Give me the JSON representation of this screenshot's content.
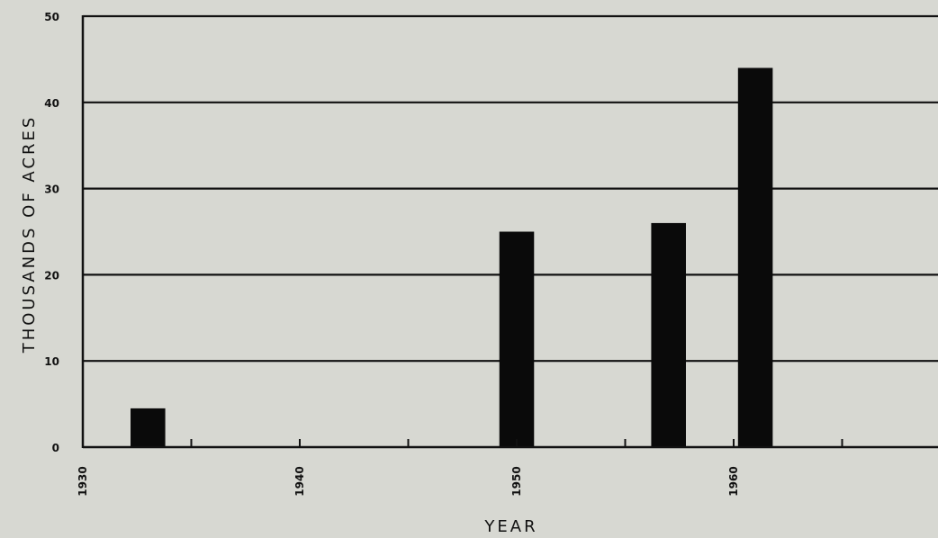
{
  "chart_data": {
    "type": "bar",
    "title": "",
    "xlabel": "YEAR",
    "ylabel": "THOUSANDS OF ACRES",
    "x": [
      1933,
      1950,
      1957,
      1961
    ],
    "values": [
      4.5,
      25,
      26,
      44
    ],
    "bar_width_years": 1.6,
    "xlim": [
      1930,
      1967
    ],
    "ylim": [
      0,
      50
    ],
    "x_ticks": [
      1930,
      1935,
      1940,
      1945,
      1950,
      1955,
      1960,
      1965
    ],
    "x_tick_labels": [
      "1930",
      "1940",
      "1950",
      "1960"
    ],
    "y_ticks": [
      0,
      10,
      20,
      30,
      40,
      50
    ],
    "y_tick_labels": [
      "0",
      "10",
      "20",
      "30",
      "40",
      "50"
    ],
    "grid": "horizontal",
    "colors": {
      "background": "#d7d8d2",
      "bar": "#0a0a0a",
      "line": "#111111"
    }
  }
}
